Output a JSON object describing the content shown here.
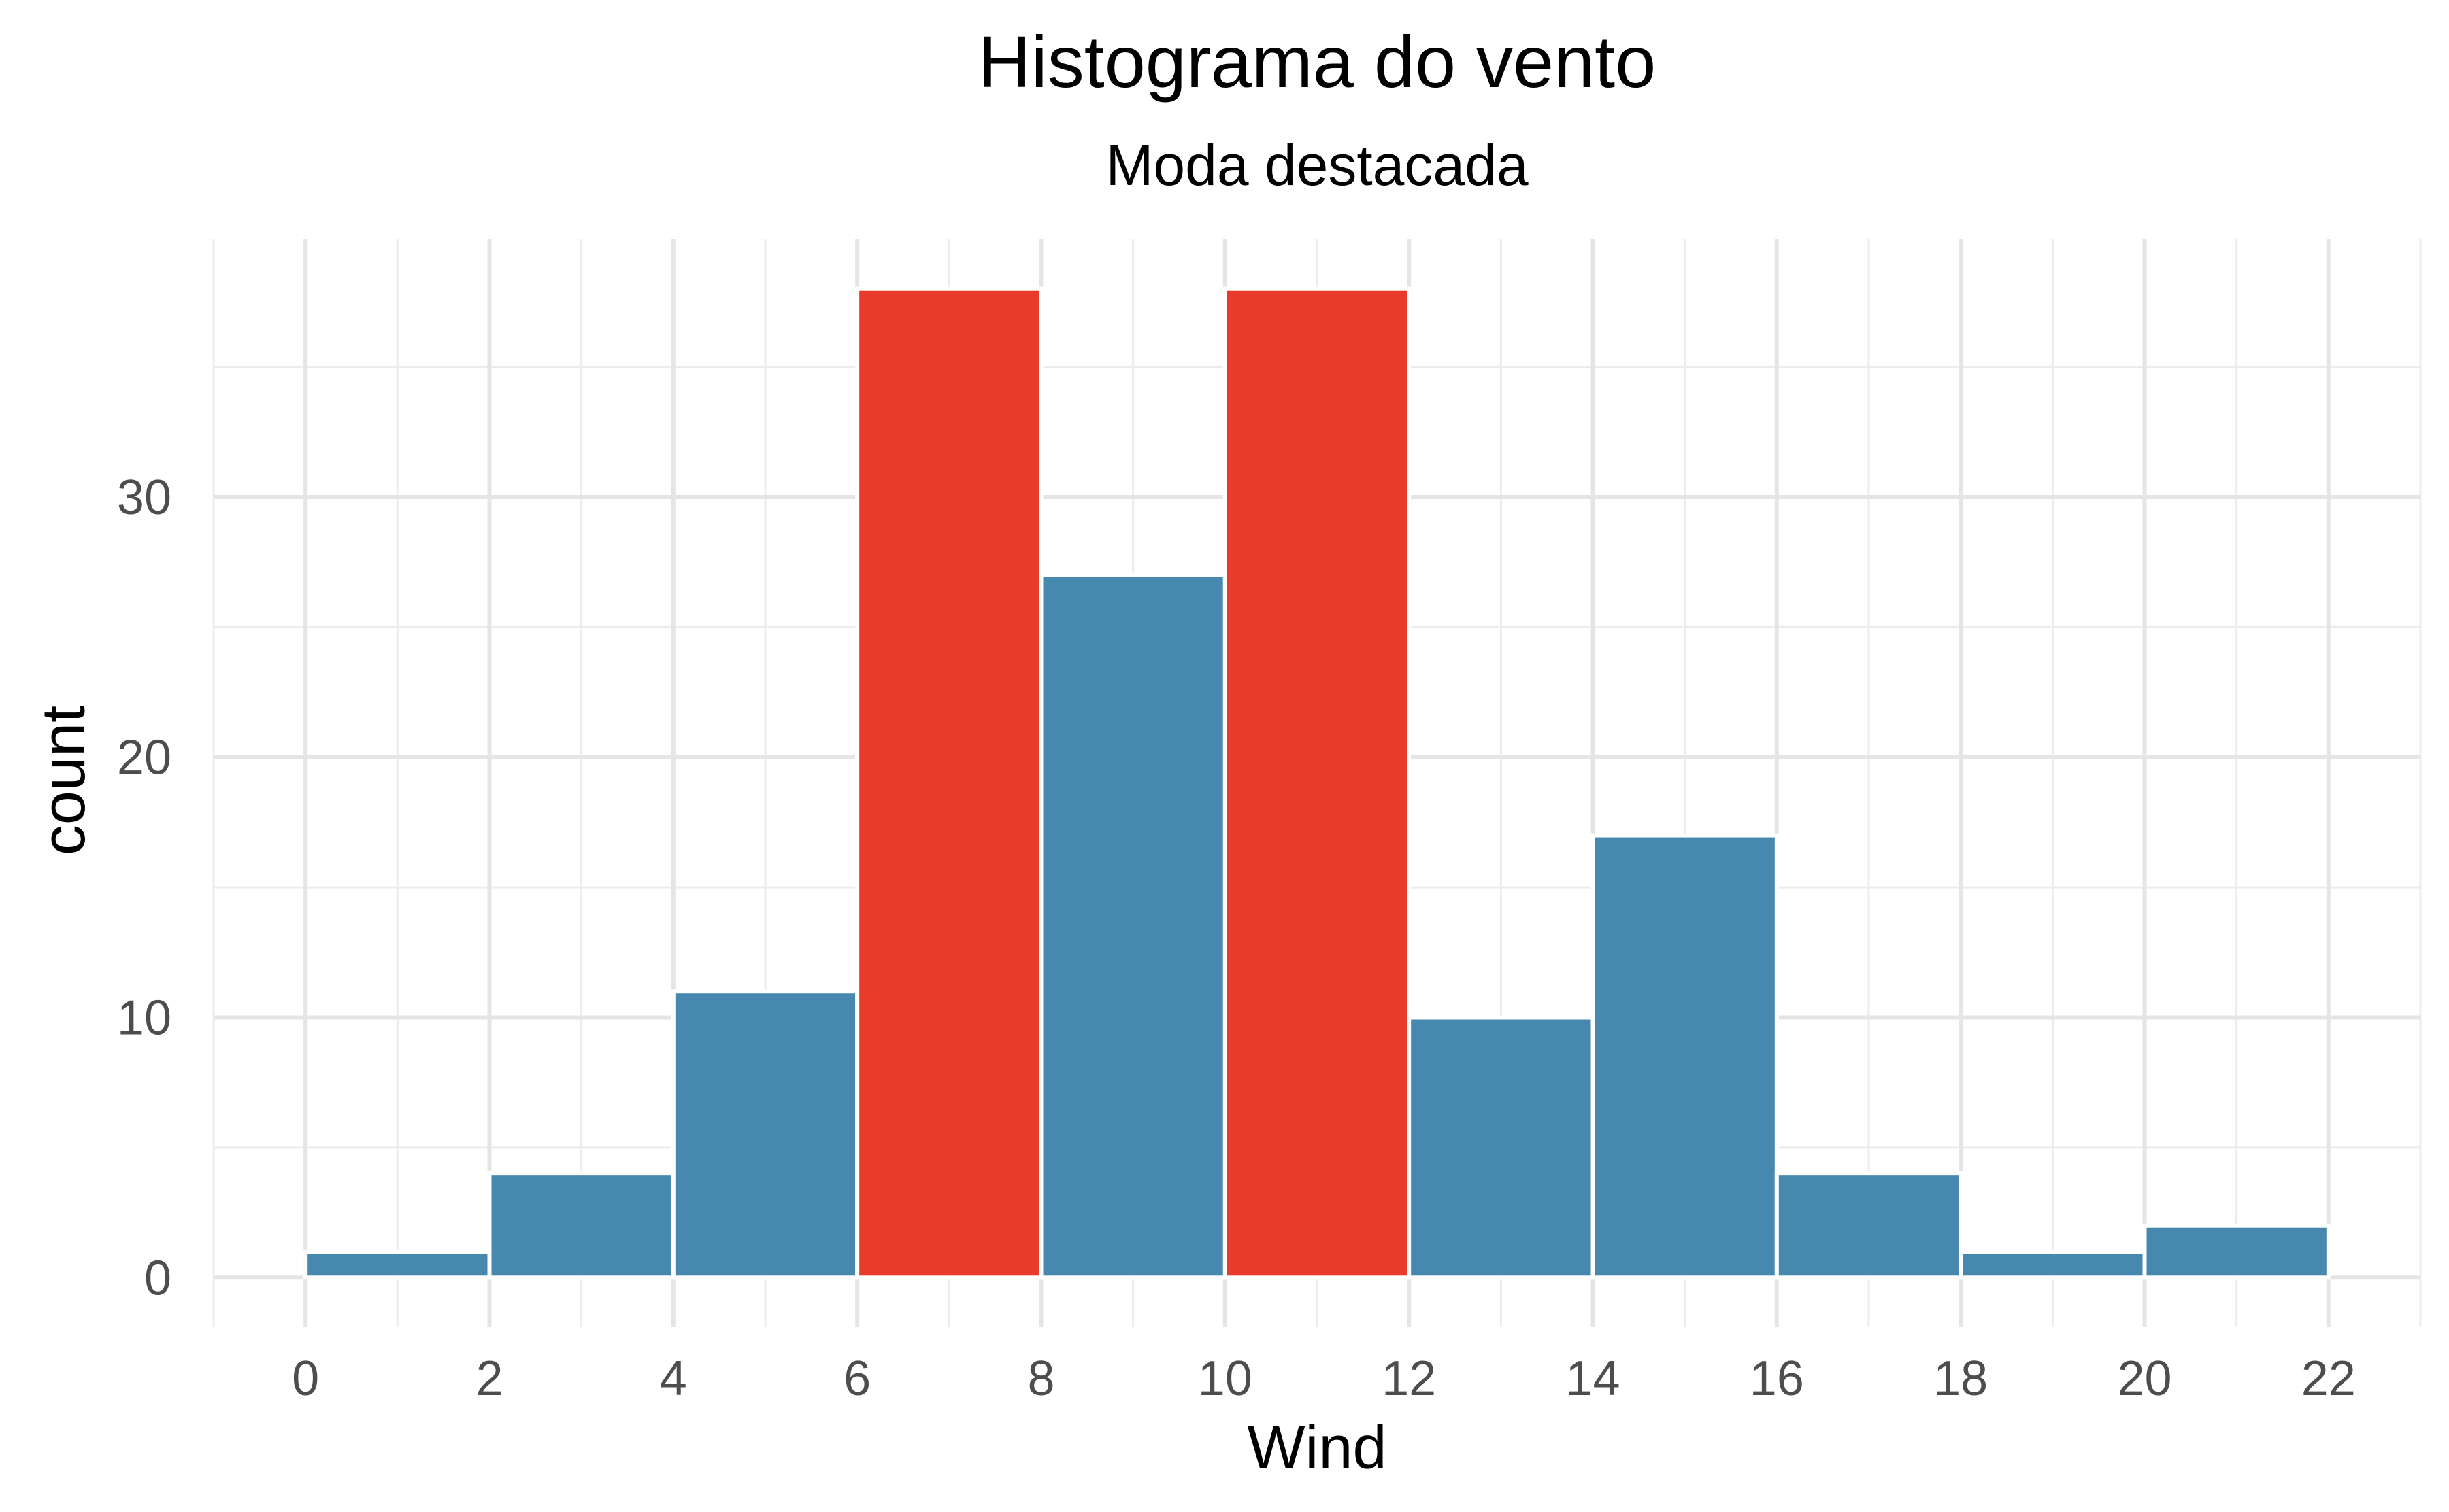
{
  "chart_data": {
    "type": "bar",
    "title": "Histograma do vento",
    "subtitle": "Moda destacada",
    "xlabel": "Wind",
    "ylabel": "count",
    "bins": [
      {
        "start": 0,
        "end": 2,
        "count": 1,
        "highlight": false
      },
      {
        "start": 2,
        "end": 4,
        "count": 4,
        "highlight": false
      },
      {
        "start": 4,
        "end": 6,
        "count": 11,
        "highlight": false
      },
      {
        "start": 6,
        "end": 8,
        "count": 38,
        "highlight": true
      },
      {
        "start": 8,
        "end": 10,
        "count": 27,
        "highlight": false
      },
      {
        "start": 10,
        "end": 12,
        "count": 38,
        "highlight": true
      },
      {
        "start": 12,
        "end": 14,
        "count": 10,
        "highlight": false
      },
      {
        "start": 14,
        "end": 16,
        "count": 17,
        "highlight": false
      },
      {
        "start": 16,
        "end": 18,
        "count": 4,
        "highlight": false
      },
      {
        "start": 18,
        "end": 20,
        "count": 1,
        "highlight": false
      },
      {
        "start": 20,
        "end": 22,
        "count": 2,
        "highlight": false
      }
    ],
    "x_ticks": [
      "0",
      "2",
      "4",
      "6",
      "8",
      "10",
      "12",
      "14",
      "16",
      "18",
      "20",
      "22"
    ],
    "y_ticks": [
      "0",
      "10",
      "20",
      "30"
    ],
    "xlim": [
      -1,
      23
    ],
    "ylim": [
      -1.9,
      39.9
    ],
    "grid": true,
    "legend": "none",
    "colors": {
      "bar": "#4789ae",
      "highlight": "#e83b29",
      "bar_outline": "#ffffff",
      "grid_major": "#e5e5e5",
      "grid_minor": "#ececec"
    }
  }
}
